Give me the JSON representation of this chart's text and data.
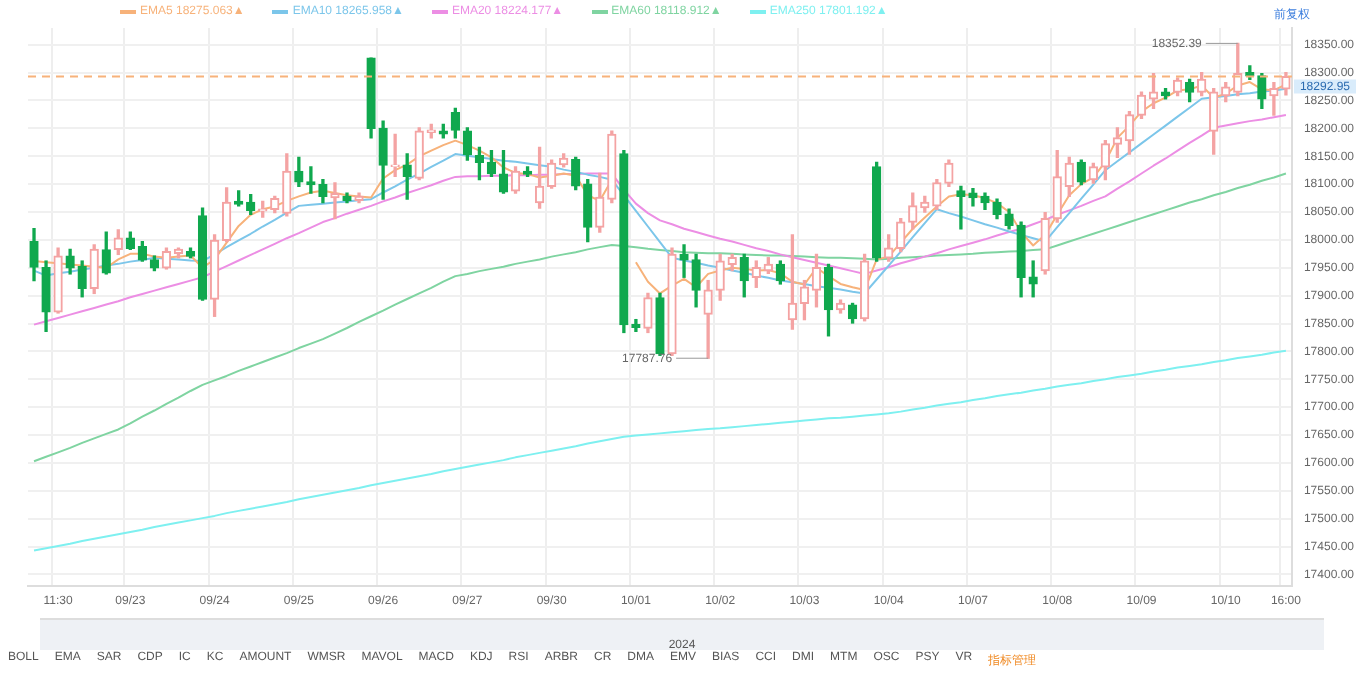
{
  "chart_data": {
    "type": "candlestick",
    "categories": [
      null,
      null,
      "11:30",
      null,
      null,
      null,
      null,
      null,
      "09/23",
      null,
      null,
      null,
      null,
      null,
      null,
      "09/24",
      null,
      null,
      null,
      null,
      null,
      null,
      "09/25",
      null,
      null,
      null,
      null,
      null,
      null,
      "09/26",
      null,
      null,
      null,
      null,
      null,
      null,
      "09/27",
      null,
      null,
      null,
      null,
      null,
      null,
      "09/30",
      null,
      null,
      null,
      null,
      null,
      null,
      "10/01",
      null,
      null,
      null,
      null,
      null,
      null,
      "10/02",
      null,
      null,
      null,
      null,
      null,
      null,
      "10/03",
      null,
      null,
      null,
      null,
      null,
      null,
      "10/04",
      null,
      null,
      null,
      null,
      null,
      null,
      "10/07",
      null,
      null,
      null,
      null,
      null,
      null,
      "10/08",
      null,
      null,
      null,
      null,
      null,
      null,
      "10/09",
      null,
      null,
      null,
      null,
      null,
      null,
      "10/10",
      null,
      null,
      null,
      null,
      "16:00"
    ],
    "ohlc": [
      [
        17997,
        18020,
        17927,
        17951
      ],
      [
        17950,
        17962,
        17836,
        17871
      ],
      [
        17871,
        17985,
        17869,
        17971
      ],
      [
        17971,
        17983,
        17939,
        17950
      ],
      [
        17952,
        17962,
        17898,
        17913
      ],
      [
        17913,
        17991,
        17904,
        17983
      ],
      [
        17982,
        18014,
        17939,
        17941
      ],
      [
        17983,
        18018,
        17974,
        18003
      ],
      [
        18003,
        18014,
        17983,
        17985
      ],
      [
        17988,
        17997,
        17962,
        17964
      ],
      [
        17964,
        17971,
        17945,
        17950
      ],
      [
        17950,
        17985,
        17948,
        17979
      ],
      [
        17976,
        17985,
        17968,
        17983
      ],
      [
        17979,
        17985,
        17968,
        17971
      ],
      [
        18043,
        18057,
        17892,
        17894
      ],
      [
        17894,
        18009,
        17863,
        17999
      ],
      [
        17999,
        18093,
        17997,
        18067
      ],
      [
        18069,
        18088,
        18061,
        18064
      ],
      [
        18067,
        18081,
        18046,
        18053
      ],
      [
        18052,
        18069,
        18041,
        18055
      ],
      [
        18055,
        18078,
        18049,
        18074
      ],
      [
        18048,
        18154,
        18043,
        18123
      ],
      [
        18123,
        18148,
        18096,
        18104
      ],
      [
        18104,
        18131,
        18084,
        18099
      ],
      [
        18099,
        18108,
        18067,
        18078
      ],
      [
        18076,
        18102,
        18038,
        18083
      ],
      [
        18078,
        18084,
        18067,
        18071
      ],
      [
        18071,
        18084,
        18067,
        18078
      ],
      [
        18326,
        18326,
        18183,
        18200
      ],
      [
        18200,
        18213,
        18073,
        18134
      ],
      [
        18132,
        18189,
        18114,
        18134
      ],
      [
        18134,
        18154,
        18073,
        18114
      ],
      [
        18111,
        18201,
        18108,
        18195
      ],
      [
        18193,
        18207,
        18183,
        18197
      ],
      [
        18195,
        18207,
        18183,
        18190
      ],
      [
        18228,
        18236,
        18183,
        18197
      ],
      [
        18195,
        18201,
        18143,
        18153
      ],
      [
        18151,
        18166,
        18108,
        18139
      ],
      [
        18139,
        18160,
        18114,
        18119
      ],
      [
        18118,
        18160,
        18084,
        18086
      ],
      [
        18088,
        18131,
        18084,
        18123
      ],
      [
        18123,
        18131,
        18114,
        18118
      ],
      [
        18067,
        18166,
        18057,
        18096
      ],
      [
        18096,
        18143,
        18093,
        18137
      ],
      [
        18135,
        18154,
        18131,
        18146
      ],
      [
        18144,
        18148,
        18090,
        18097
      ],
      [
        18100,
        18108,
        17997,
        18023
      ],
      [
        18023,
        18119,
        18014,
        18076
      ],
      [
        18073,
        18195,
        18067,
        18189
      ],
      [
        18154,
        18160,
        17834,
        17848
      ],
      [
        17848,
        17857,
        17836,
        17843
      ],
      [
        17842,
        17904,
        17834,
        17896
      ],
      [
        17896,
        17904,
        17793,
        17796
      ],
      [
        17796,
        17985,
        17793,
        17974
      ],
      [
        17974,
        17991,
        17933,
        17964
      ],
      [
        17964,
        17974,
        17880,
        17910
      ],
      [
        17867,
        17927,
        17787.76,
        17910
      ],
      [
        17910,
        17974,
        17892,
        17962
      ],
      [
        17956,
        17974,
        17945,
        17968
      ],
      [
        17968,
        17974,
        17898,
        17927
      ],
      [
        17933,
        17962,
        17915,
        17950
      ],
      [
        17945,
        17968,
        17940,
        17956
      ],
      [
        17956,
        17962,
        17921,
        17927
      ],
      [
        17857,
        18009,
        17840,
        17886
      ],
      [
        17886,
        17927,
        17857,
        17915
      ],
      [
        17910,
        17974,
        17880,
        17950
      ],
      [
        17950,
        17956,
        17828,
        17875
      ],
      [
        17875,
        17892,
        17869,
        17886
      ],
      [
        17883,
        17886,
        17851,
        17859
      ],
      [
        17859,
        17974,
        17855,
        17962
      ],
      [
        18131,
        18139,
        17962,
        17968
      ],
      [
        17968,
        18009,
        17962,
        17985
      ],
      [
        17985,
        18038,
        17979,
        18032
      ],
      [
        18032,
        18084,
        18020,
        18061
      ],
      [
        18058,
        18078,
        18050,
        18067
      ],
      [
        18061,
        18108,
        18055,
        18102
      ],
      [
        18102,
        18143,
        18096,
        18137
      ],
      [
        18088,
        18096,
        18020,
        18078
      ],
      [
        18084,
        18092,
        18061,
        18076
      ],
      [
        18078,
        18084,
        18055,
        18067
      ],
      [
        18067,
        18073,
        18038,
        18046
      ],
      [
        18046,
        18055,
        18020,
        18026
      ],
      [
        18026,
        18032,
        17898,
        17933
      ],
      [
        17933,
        17962,
        17898,
        17921
      ],
      [
        17945,
        18049,
        17939,
        18038
      ],
      [
        18038,
        18160,
        18032,
        18113
      ],
      [
        18096,
        18148,
        18078,
        18137
      ],
      [
        18139,
        18143,
        18099,
        18104
      ],
      [
        18108,
        18137,
        18102,
        18131
      ],
      [
        18131,
        18178,
        18108,
        18172
      ],
      [
        18172,
        18201,
        18148,
        18183
      ],
      [
        18178,
        18230,
        18154,
        18224
      ],
      [
        18224,
        18265,
        18218,
        18259
      ],
      [
        18253,
        18298,
        18236,
        18265
      ],
      [
        18265,
        18271,
        18253,
        18259
      ],
      [
        18265,
        18290,
        18259,
        18286
      ],
      [
        18282,
        18288,
        18248,
        18265
      ],
      [
        18265,
        18300,
        18259,
        18288
      ],
      [
        18195,
        18271,
        18154,
        18265
      ],
      [
        18259,
        18282,
        18248,
        18274
      ],
      [
        18265,
        18352.39,
        18259,
        18298
      ],
      [
        18300,
        18312,
        18288,
        18294
      ],
      [
        18294,
        18298,
        18236,
        18253
      ],
      [
        18259,
        18282,
        18224,
        18271
      ],
      [
        18271,
        18300,
        18260,
        18292.95
      ]
    ],
    "colors": [
      "#10a84e",
      "#10a84e",
      "#f4a3a3",
      "#10a84e",
      "#10a84e",
      "#f4a3a3",
      "#10a84e",
      "#f4a3a3",
      "#10a84e",
      "#10a84e",
      "#10a84e",
      "#f4a3a3",
      "#f4a3a3",
      "#10a84e",
      "#10a84e",
      "#f4a3a3",
      "#f4a3a3",
      "#10a84e",
      "#10a84e",
      "#f4a3a3",
      "#f4a3a3",
      "#f4a3a3",
      "#10a84e",
      "#10a84e",
      "#10a84e",
      "#f4a3a3",
      "#10a84e",
      "#f4a3a3",
      "#10a84e",
      "#10a84e",
      "#f4a3a3",
      "#10a84e",
      "#f4a3a3",
      "#f4a3a3",
      "#10a84e",
      "#10a84e",
      "#10a84e",
      "#10a84e",
      "#10a84e",
      "#10a84e",
      "#f4a3a3",
      "#10a84e",
      "#f4a3a3",
      "#f4a3a3",
      "#f4a3a3",
      "#10a84e",
      "#10a84e",
      "#f4a3a3",
      "#f4a3a3",
      "#10a84e",
      "#10a84e",
      "#f4a3a3",
      "#10a84e",
      "#f4a3a3",
      "#10a84e",
      "#10a84e",
      "#f4a3a3",
      "#f4a3a3",
      "#f4a3a3",
      "#10a84e",
      "#f4a3a3",
      "#f4a3a3",
      "#10a84e",
      "#f4a3a3",
      "#f4a3a3",
      "#f4a3a3",
      "#10a84e",
      "#f4a3a3",
      "#10a84e",
      "#f4a3a3",
      "#10a84e",
      "#f4a3a3",
      "#f4a3a3",
      "#f4a3a3",
      "#f4a3a3",
      "#f4a3a3",
      "#f4a3a3",
      "#10a84e",
      "#10a84e",
      "#10a84e",
      "#10a84e",
      "#10a84e",
      "#10a84e",
      "#10a84e",
      "#f4a3a3",
      "#f4a3a3",
      "#f4a3a3",
      "#10a84e",
      "#f4a3a3",
      "#f4a3a3",
      "#f4a3a3",
      "#f4a3a3",
      "#f4a3a3",
      "#f4a3a3",
      "#10a84e",
      "#f4a3a3",
      "#10a84e",
      "#f4a3a3",
      "#f4a3a3",
      "#f4a3a3",
      "#f4a3a3",
      "#10a84e",
      "#10a84e",
      "#f4a3a3",
      "#f4a3a3"
    ],
    "series": [
      {
        "name": "EMA5 18275.063▲",
        "type": "line",
        "color": "#f7b27a",
        "values": [
          17962,
          17960,
          17958,
          17956,
          17954,
          17952,
          17950,
          17965,
          17975,
          17975,
          17970,
          17968,
          17970,
          17972,
          17950,
          17965,
          17995,
          18025,
          18045,
          18055,
          18060,
          18070,
          18078,
          18085,
          18088,
          18084,
          18080,
          18078,
          18076,
          18110,
          18125,
          18135,
          18150,
          18160,
          18170,
          18178,
          18170,
          18160,
          18148,
          18130,
          18120,
          18118,
          18112,
          18115,
          18119,
          18115,
          18080,
          18070,
          18108,
          null,
          17960,
          17925,
          17904,
          17918,
          17930,
          17915,
          17939,
          17945,
          17950,
          17948,
          17945,
          17946,
          17940,
          17925,
          17920,
          17950,
          17935,
          17921,
          17915,
          17910,
          17965,
          17970,
          17995,
          18020,
          18040,
          18060,
          18078,
          18082,
          18080,
          18075,
          18066,
          18050,
          18014,
          17990,
          18009,
          18045,
          18080,
          18100,
          18112,
          18140,
          18183,
          18205,
          18230,
          18245,
          18255,
          18268,
          18270,
          18277,
          18255,
          18262,
          18277,
          18283,
          18270,
          18268,
          18279
        ]
      },
      {
        "name": "EMA10 18265.958▲",
        "type": "line",
        "color": "#7cc6ea",
        "values": [
          17945,
          17936,
          17940,
          17943,
          17947,
          17950,
          17954,
          17957,
          17961,
          17964,
          17968,
          17966,
          17965,
          17963,
          17962,
          17974,
          17987,
          17999,
          18011,
          18024,
          18036,
          18049,
          18061,
          18063,
          18065,
          18067,
          18069,
          18071,
          18073,
          18085,
          18096,
          18108,
          18119,
          18131,
          18142,
          18154,
          18151,
          18148,
          18145,
          18142,
          18140,
          18137,
          18134,
          18131,
          18126,
          18122,
          18117,
          18113,
          18108,
          18080,
          18052,
          18024,
          17996,
          17968,
          17963,
          17959,
          17954,
          17950,
          17945,
          17941,
          17936,
          17932,
          17927,
          17924,
          17921,
          17917,
          17914,
          17911,
          17907,
          17904,
          17929,
          17954,
          17979,
          18005,
          18030,
          18055,
          18048,
          18042,
          18035,
          18028,
          18022,
          18015,
          18009,
          18003,
          17997,
          18023,
          18048,
          18074,
          18099,
          18125,
          18141,
          18157,
          18173,
          18189,
          18205,
          18221,
          18237,
          18253,
          18256,
          18258,
          18261,
          18263,
          18266,
          18268,
          18271
        ]
      },
      {
        "name": "EMA20 18224.177▲",
        "type": "line",
        "color": "#ec8ee4",
        "values": [
          17848,
          17854,
          17860,
          17866,
          17872,
          17878,
          17884,
          17890,
          17897,
          17903,
          17909,
          17915,
          17921,
          17927,
          17933,
          17943,
          17953,
          17963,
          17973,
          17983,
          17993,
          18003,
          18012,
          18022,
          18032,
          18039,
          18047,
          18054,
          18061,
          18069,
          18076,
          18084,
          18091,
          18098,
          18106,
          18113,
          18114,
          18114,
          18115,
          18115,
          18116,
          18116,
          18117,
          18117,
          18118,
          18118,
          18119,
          18119,
          18119,
          18090,
          18065,
          18048,
          18035,
          18028,
          18020,
          18014,
          18008,
          18002,
          17997,
          17991,
          17985,
          17980,
          17974,
          17969,
          17964,
          17959,
          17954,
          17949,
          17944,
          17939,
          17945,
          17951,
          17958,
          17964,
          17970,
          17976,
          17983,
          17989,
          17995,
          18001,
          18008,
          18014,
          18020,
          18028,
          18036,
          18045,
          18053,
          18061,
          18070,
          18078,
          18092,
          18105,
          18119,
          18133,
          18146,
          18160,
          18174,
          18187,
          18201,
          18205,
          18209,
          18213,
          18216,
          18220,
          18224
        ]
      },
      {
        "name": "EMA60 18118.912▲",
        "type": "line",
        "color": "#7fd4a1",
        "values": [
          17603,
          17611,
          17619,
          17627,
          17636,
          17644,
          17652,
          17660,
          17671,
          17683,
          17694,
          17706,
          17717,
          17729,
          17740,
          17748,
          17756,
          17765,
          17773,
          17781,
          17789,
          17797,
          17806,
          17814,
          17822,
          17832,
          17842,
          17853,
          17863,
          17873,
          17884,
          17894,
          17904,
          17914,
          17925,
          17935,
          17939,
          17944,
          17948,
          17952,
          17957,
          17961,
          17965,
          17970,
          17974,
          17978,
          17983,
          17987,
          17991,
          17989,
          17987,
          17984,
          17982,
          17980,
          17978,
          17977,
          17976,
          17976,
          17975,
          17974,
          17973,
          17972,
          17972,
          17971,
          17970,
          17969,
          17968,
          17968,
          17967,
          17966,
          17965,
          17966,
          17968,
          17969,
          17970,
          17972,
          17973,
          17974,
          17975,
          17977,
          17978,
          17979,
          17980,
          17982,
          17983,
          17990,
          17997,
          18004,
          18011,
          18018,
          18025,
          18032,
          18039,
          18046,
          18053,
          18060,
          18067,
          18073,
          18080,
          18086,
          18093,
          18099,
          18106,
          18112,
          18119
        ]
      },
      {
        "name": "EMA250 17801.192▲",
        "type": "line",
        "color": "#7ef0f0",
        "values": [
          17443,
          17447,
          17451,
          17455,
          17460,
          17464,
          17468,
          17472,
          17476,
          17480,
          17485,
          17489,
          17493,
          17497,
          17501,
          17505,
          17510,
          17514,
          17518,
          17522,
          17526,
          17530,
          17535,
          17539,
          17543,
          17547,
          17551,
          17555,
          17560,
          17564,
          17568,
          17572,
          17576,
          17580,
          17585,
          17589,
          17593,
          17597,
          17601,
          17605,
          17610,
          17614,
          17618,
          17622,
          17626,
          17630,
          17635,
          17639,
          17643,
          17647,
          17649,
          17651,
          17653,
          17655,
          17657,
          17659,
          17661,
          17662,
          17664,
          17666,
          17668,
          17670,
          17672,
          17674,
          17676,
          17678,
          17680,
          17681,
          17683,
          17685,
          17687,
          17689,
          17692,
          17696,
          17699,
          17703,
          17706,
          17709,
          17713,
          17716,
          17720,
          17723,
          17726,
          17730,
          17733,
          17737,
          17740,
          17743,
          17747,
          17750,
          17754,
          17757,
          17760,
          17764,
          17767,
          17771,
          17774,
          17777,
          17781,
          17784,
          17788,
          17791,
          17794,
          17798,
          17801
        ]
      }
    ],
    "ylim": [
      17380,
      18380
    ],
    "yticks": [
      {
        "value": 17400,
        "label": "17400.00"
      },
      {
        "value": 17450,
        "label": "17450.00"
      },
      {
        "value": 17500,
        "label": "17500.00"
      },
      {
        "value": 17550,
        "label": "17550.00"
      },
      {
        "value": 17600,
        "label": "17600.00"
      },
      {
        "value": 17650,
        "label": "17650.00"
      },
      {
        "value": 17700,
        "label": "17700.00"
      },
      {
        "value": 17750,
        "label": "17750.00"
      },
      {
        "value": 17800,
        "label": "17800.00"
      },
      {
        "value": 17850,
        "label": "17850.00"
      },
      {
        "value": 17900,
        "label": "17900.00"
      },
      {
        "value": 17950,
        "label": "17950.00"
      },
      {
        "value": 18000,
        "label": "18000.00"
      },
      {
        "value": 18050,
        "label": "18050.00"
      },
      {
        "value": 18100,
        "label": "18100.00"
      },
      {
        "value": 18150,
        "label": "18150.00"
      },
      {
        "value": 18200,
        "label": "18200.00"
      },
      {
        "value": 18250,
        "label": "18250.00"
      },
      {
        "value": 18300,
        "label": "18300.00"
      },
      {
        "value": 18350,
        "label": "18350.00"
      }
    ],
    "ref_lines": [
      {
        "axis": "y",
        "value": 18292.95,
        "label": "18292.95",
        "color": "#f7b27a",
        "line_style": "dashed"
      }
    ],
    "annotations": [
      "18352.39",
      "17787.76",
      "前复权",
      "2024",
      "BOLL",
      "EMA",
      "SAR",
      "CDP",
      "IC",
      "KC",
      "AMOUNT",
      "WMSR",
      "MAVOL",
      "MACD",
      "KDJ",
      "RSI",
      "ARBR",
      "CR",
      "DMA",
      "EMV",
      "BIAS",
      "CCI",
      "DMI",
      "MTM",
      "OSC",
      "PSY",
      "VR",
      "指标管理"
    ],
    "grid": true,
    "legend": "top",
    "marker": "none"
  }
}
